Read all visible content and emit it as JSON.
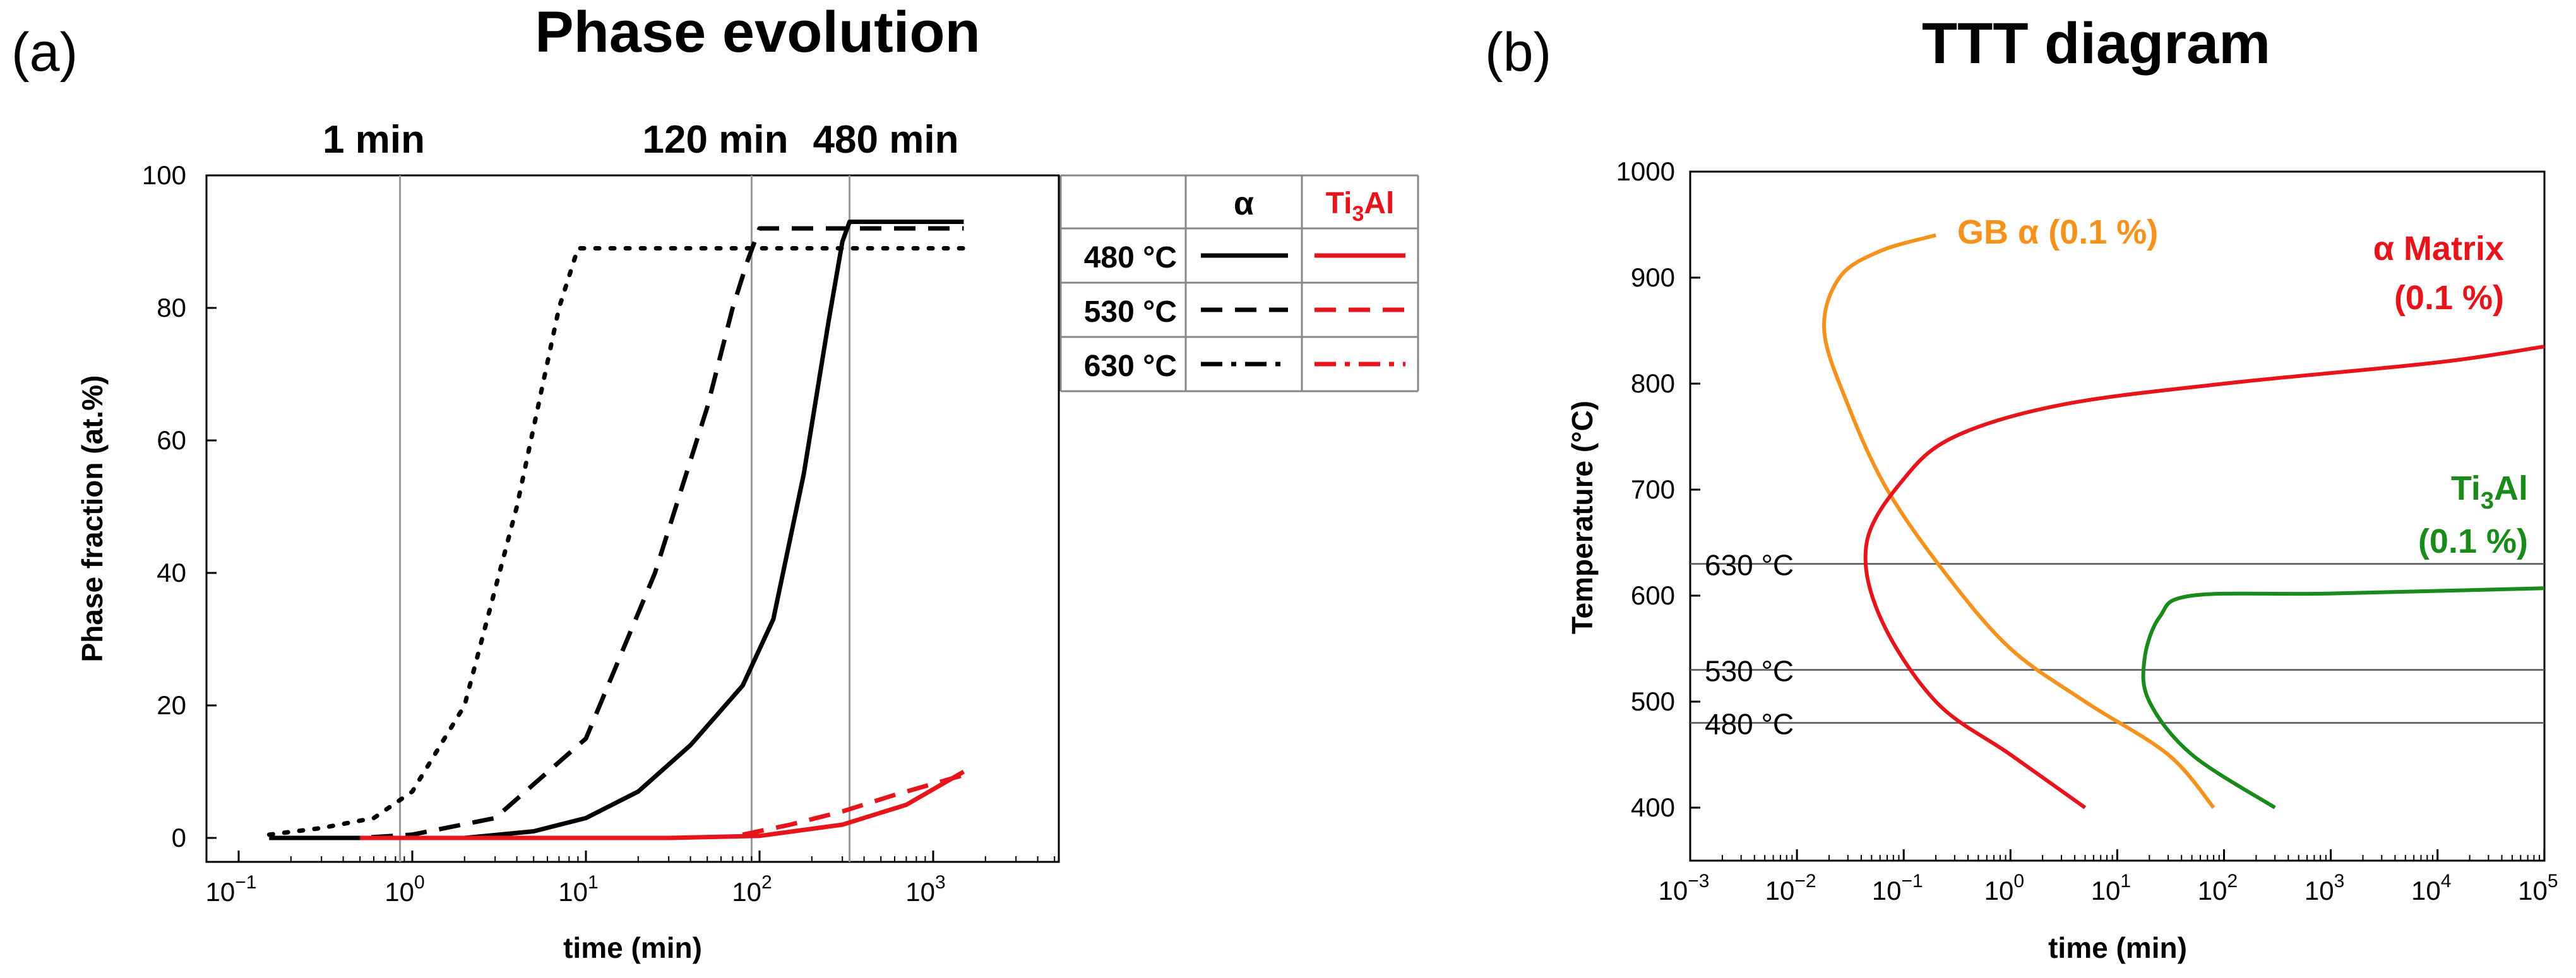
{
  "chart_data": [
    {
      "panel_label": "(a)",
      "type": "line",
      "title": "Phase evolution",
      "xlabel": "time (min)",
      "ylabel": "Phase fraction (at.%)",
      "xscale": "log",
      "xlim": [
        0.1,
        5000
      ],
      "ylim": [
        0,
        100
      ],
      "yticks": [
        "0",
        "20",
        "40",
        "60",
        "80",
        "100"
      ],
      "xticks": [
        {
          "base": "10",
          "exp": "−1"
        },
        {
          "base": "10",
          "exp": "0"
        },
        {
          "base": "10",
          "exp": "1"
        },
        {
          "base": "10",
          "exp": "2"
        },
        {
          "base": "10",
          "exp": "3"
        }
      ],
      "marker_labels": [
        "1 min",
        "120 min",
        "480 min"
      ],
      "vlines": [
        0.85,
        90,
        330
      ],
      "legend": {
        "col_alpha": "α",
        "col_ti3al_main": "Ti",
        "col_ti3al_sub": "3",
        "col_ti3al_tail": "Al",
        "rows": [
          "480 °C",
          "530 °C",
          "630 °C"
        ]
      },
      "colors": {
        "alpha": "#000000",
        "ti3al": "#e8141b"
      },
      "series": [
        {
          "name": "α 480 °C",
          "style": "solid",
          "color": "#000000",
          "points": [
            [
              0.15,
              0
            ],
            [
              2,
              0
            ],
            [
              5,
              1
            ],
            [
              10,
              3
            ],
            [
              20,
              7
            ],
            [
              40,
              14
            ],
            [
              80,
              23
            ],
            [
              120,
              33
            ],
            [
              180,
              55
            ],
            [
              250,
              78
            ],
            [
              300,
              90
            ],
            [
              330,
              93
            ],
            [
              1500,
              93
            ]
          ]
        },
        {
          "name": "α 530 °C",
          "style": "dash",
          "color": "#000000",
          "points": [
            [
              0.15,
              0
            ],
            [
              0.5,
              0
            ],
            [
              1,
              0.5
            ],
            [
              3,
              3
            ],
            [
              10,
              15
            ],
            [
              25,
              40
            ],
            [
              50,
              65
            ],
            [
              70,
              80
            ],
            [
              85,
              87
            ],
            [
              100,
              92
            ],
            [
              1500,
              92
            ]
          ]
        },
        {
          "name": "α 630 °C",
          "style": "dot",
          "color": "#000000",
          "points": [
            [
              0.15,
              0.5
            ],
            [
              0.3,
              1.5
            ],
            [
              0.6,
              3
            ],
            [
              1,
              7
            ],
            [
              2,
              20
            ],
            [
              4,
              50
            ],
            [
              7,
              80
            ],
            [
              9,
              89
            ],
            [
              20,
              89
            ],
            [
              100,
              89
            ],
            [
              1500,
              89
            ]
          ]
        },
        {
          "name": "Ti3Al 480 °C",
          "style": "solid",
          "color": "#e8141b",
          "points": [
            [
              0.5,
              0
            ],
            [
              30,
              0
            ],
            [
              100,
              0.3
            ],
            [
              300,
              2
            ],
            [
              700,
              5
            ],
            [
              1500,
              10
            ]
          ]
        },
        {
          "name": "Ti3Al 530 °C",
          "style": "dash",
          "color": "#e8141b",
          "points": [
            [
              80,
              0.5
            ],
            [
              150,
              2
            ],
            [
              300,
              4
            ],
            [
              600,
              6.5
            ],
            [
              1500,
              9.5
            ]
          ]
        }
      ]
    },
    {
      "panel_label": "(b)",
      "type": "line",
      "title": "TTT diagram",
      "xlabel": "time (min)",
      "ylabel": "Temperature (°C)",
      "xscale": "log",
      "xlim": [
        0.001,
        100000
      ],
      "ylim": [
        350,
        1000
      ],
      "yticks": [
        "400",
        "500",
        "600",
        "700",
        "800",
        "900",
        "1000"
      ],
      "xticks": [
        {
          "base": "10",
          "exp": "−3"
        },
        {
          "base": "10",
          "exp": "−2"
        },
        {
          "base": "10",
          "exp": "−1"
        },
        {
          "base": "10",
          "exp": "0"
        },
        {
          "base": "10",
          "exp": "1"
        },
        {
          "base": "10",
          "exp": "2"
        },
        {
          "base": "10",
          "exp": "3"
        },
        {
          "base": "10",
          "exp": "4"
        },
        {
          "base": "10",
          "exp": "5"
        }
      ],
      "hlines": [
        {
          "label": "630 °C",
          "value": 630
        },
        {
          "label": "530 °C",
          "value": 530
        },
        {
          "label": "480 °C",
          "value": 480
        }
      ],
      "series": [
        {
          "name": "GB α (0.1 %)",
          "color": "#f5921e",
          "annotation": [
            "GB α (0.1 %)"
          ],
          "points": [
            [
              80,
              400
            ],
            [
              30,
              450
            ],
            [
              5,
              500
            ],
            [
              1,
              550
            ],
            [
              0.25,
              620
            ],
            [
              0.07,
              700
            ],
            [
              0.03,
              780
            ],
            [
              0.018,
              850
            ],
            [
              0.025,
              900
            ],
            [
              0.06,
              925
            ],
            [
              0.2,
              940
            ]
          ]
        },
        {
          "name": "α Matrix (0.1 %)",
          "color": "#e8141b",
          "annotation": [
            "α Matrix",
            "(0.1 %)"
          ],
          "points": [
            [
              5,
              400
            ],
            [
              1,
              450
            ],
            [
              0.2,
              500
            ],
            [
              0.06,
              580
            ],
            [
              0.045,
              650
            ],
            [
              0.1,
              710
            ],
            [
              0.3,
              750
            ],
            [
              3,
              780
            ],
            [
              100,
              800
            ],
            [
              10000,
              820
            ],
            [
              100000,
              835
            ]
          ]
        },
        {
          "name": "Ti3Al (0.1 %)",
          "color": "#1a8a1a",
          "annotation": [
            "Ti3Al",
            "(0.1 %)"
          ],
          "points": [
            [
              300,
              400
            ],
            [
              50,
              450
            ],
            [
              20,
              500
            ],
            [
              18,
              540
            ],
            [
              25,
              580
            ],
            [
              50,
              600
            ],
            [
              1000,
              602
            ],
            [
              100000,
              607
            ]
          ]
        }
      ]
    }
  ]
}
